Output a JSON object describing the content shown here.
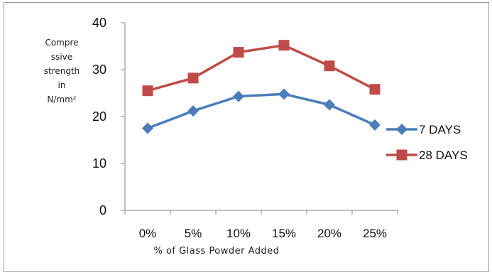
{
  "chart_data": {
    "type": "line",
    "categories": [
      "0%",
      "5%",
      "10%",
      "15%",
      "20%",
      "25%"
    ],
    "series": [
      {
        "name": "7 DAYS",
        "values": [
          17.5,
          21.2,
          24.3,
          24.8,
          22.5,
          18.2
        ],
        "color": "#4a7ebb",
        "marker": "diamond"
      },
      {
        "name": "28 DAYS",
        "values": [
          25.5,
          28.2,
          33.7,
          35.2,
          30.8,
          25.8
        ],
        "color": "#be4b48",
        "marker": "square"
      }
    ],
    "ylim": [
      0,
      40
    ],
    "yticks": [
      "0",
      "10",
      "20",
      "30",
      "40"
    ],
    "ylabel_lines": [
      "Compre",
      "ssive",
      "strength",
      "in",
      "N/mm²"
    ],
    "xlabel": "% of Glass Powder Added",
    "legend_position": "right"
  }
}
